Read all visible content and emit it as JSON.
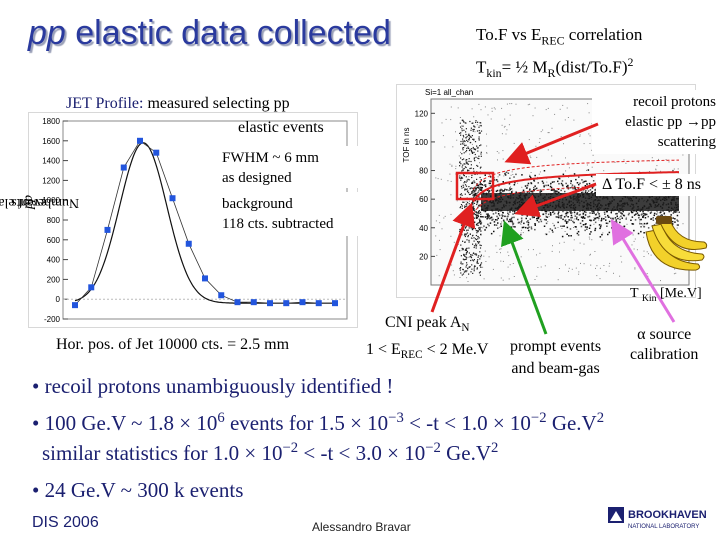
{
  "title": {
    "prefix": "pp",
    "rest": " elastic data collected"
  },
  "tof_title": {
    "line1": "To.F vs E",
    "line1_sub": "REC",
    "line1_end": " correlation",
    "line2_a": "T",
    "line2_sub": "kin",
    "line2_b": "= ½ M",
    "line2_sub2": "R",
    "line2_c": "(dist/To.F)",
    "line2_sup": "2"
  },
  "left_panel": {
    "y_axis_label_a": "Number of elastic ",
    "y_axis_label_pp": "pp",
    "y_axis_label_b": " events",
    "jet_profile_label": "JET Profile:",
    "jet_profile_line1": " measured selecting pp",
    "jet_profile_line2": "elastic events",
    "fwhm_line1": "FWHM ~ 6 mm",
    "fwhm_line2": "as designed",
    "background_line1": "background",
    "background_line2": "118 cts. subtracted",
    "hor_pos": "Hor. pos. of Jet 10000 cts. = 2.5 mm"
  },
  "right_panel": {
    "hist_label": "Si=1 all_chan",
    "y_axis_label": "TOF in ns",
    "recoil_line1": "recoil protons",
    "recoil_line2": "elastic pp →pp",
    "recoil_line3": "scattering",
    "dtof": "Δ To.F < ± 8 ns",
    "tkin_label": "T ",
    "tkin_sub": "Kin",
    "tkin_unit": " [Me.V]",
    "cni_line1": "CNI peak A",
    "cni_sub": "N",
    "cni_line2": "1 < E",
    "cni_sub2": "REC",
    "cni_line2_end": " < 2 Me.V",
    "prompt_line1": "prompt events",
    "prompt_line2": "and beam-gas",
    "alpha_line1": "α source",
    "alpha_line2": "calibration"
  },
  "bullets": {
    "b1": "• recoil protons unambiguously identified !",
    "b2_a": "• 100 Ge.V ~ 1.8 × 10",
    "b2_sup1": "6",
    "b2_b": " events for 1.5 × 10",
    "b2_sup2": "−3",
    "b2_c": " < -t < 1.0 × 10",
    "b2_sup3": "−2",
    "b2_d": " Ge.V",
    "b2_sup4": "2",
    "b2b_a": "similar statistics for 1.0 × 10",
    "b2b_sup1": "−2",
    "b2b_b": " < -t < 3.0 × 10",
    "b2b_sup2": "−2",
    "b2b_c": " Ge.V",
    "b2b_sup3": "2",
    "b3": "•  24 Ge.V ~ 300 k events"
  },
  "footer": {
    "left": "DIS 2006",
    "mid": "Alessandro Bravar",
    "logo_top": "BROOKHAVEN",
    "logo_bottom": "NATIONAL LABORATORY"
  },
  "chart_data": [
    {
      "type": "scatter",
      "title": "",
      "xlabel": "",
      "ylabel": "Number of elastic pp events",
      "ylim": [
        -200,
        1800
      ],
      "y_ticks": [
        -200,
        0,
        200,
        400,
        600,
        800,
        1000,
        1200,
        1400,
        1600,
        1800
      ],
      "x": [
        1,
        2,
        3,
        4,
        5,
        6,
        7,
        8,
        9,
        10,
        11,
        12,
        13,
        14,
        15,
        16,
        17
      ],
      "values": [
        -60,
        120,
        700,
        1330,
        1600,
        1480,
        1020,
        560,
        210,
        40,
        -30,
        -30,
        -40,
        -40,
        -30,
        -40,
        -40
      ],
      "fit_curve": "gaussian"
    },
    {
      "type": "heatmap",
      "title": "Si=1 all_chan",
      "ylabel": "TOF in ns",
      "y_ticks": [
        20,
        40,
        60,
        80,
        100,
        120
      ]
    }
  ],
  "colors": {
    "title": "#2a3a9e",
    "bullets": "#1b2070",
    "arrow_red": "#e02020",
    "arrow_green": "#20a020",
    "arrow_pink": "#e070e0"
  }
}
